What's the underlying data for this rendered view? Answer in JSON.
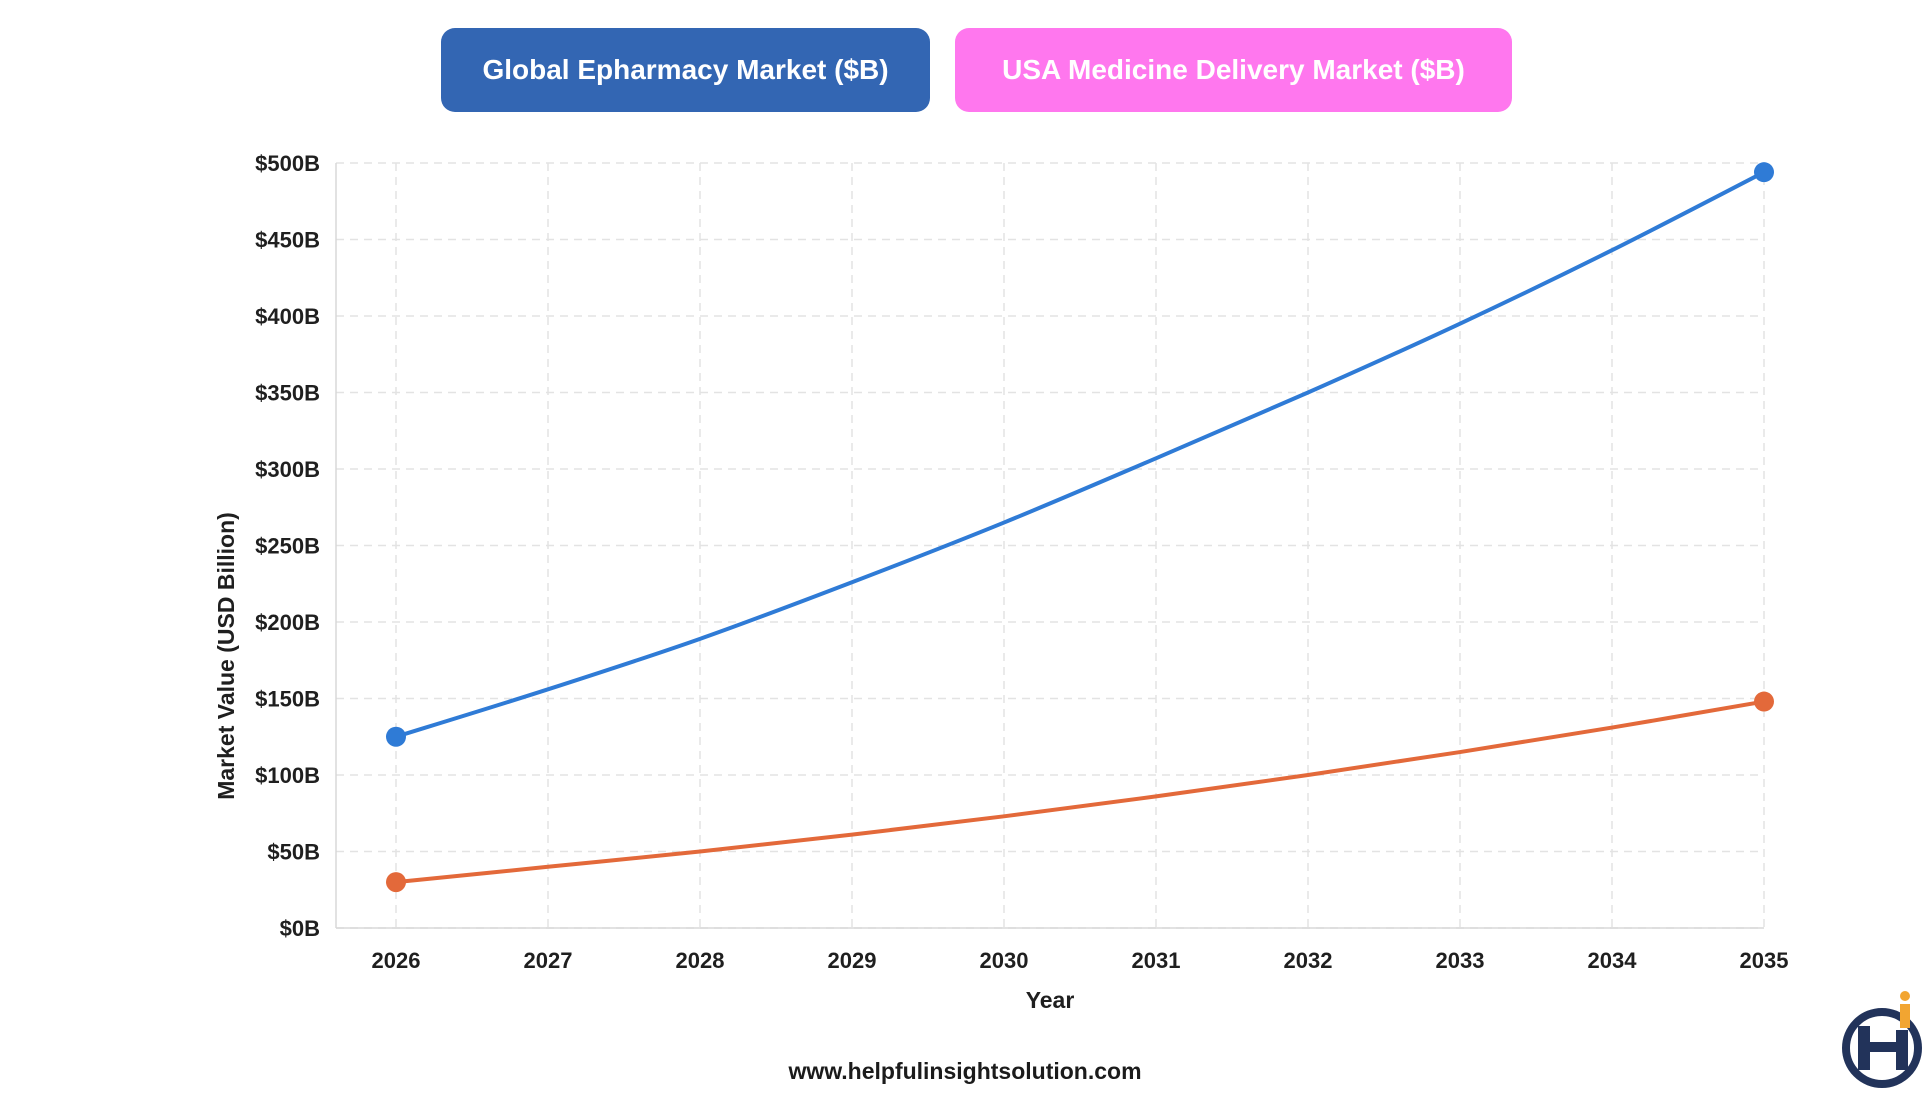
{
  "legend": [
    {
      "label": "Global Epharmacy Market ($B)",
      "color": "#3366b3"
    },
    {
      "label": "USA Medicine Delivery Market ($B)",
      "color": "#ff77ee"
    }
  ],
  "footer": {
    "url": "www.helpfulinsightsolution.com"
  },
  "chart_data": {
    "type": "line",
    "title": "",
    "xlabel": "Year",
    "ylabel": "Market Value (USD Billion)",
    "x": [
      "2026",
      "2027",
      "2028",
      "2029",
      "2030",
      "2031",
      "2032",
      "2033",
      "2034",
      "2035"
    ],
    "ylim": [
      0,
      500
    ],
    "y_ticks": [
      0,
      50,
      100,
      150,
      200,
      250,
      300,
      350,
      400,
      450,
      500
    ],
    "y_tick_labels": [
      "$0B",
      "$50B",
      "$100B",
      "$150B",
      "$200B",
      "$250B",
      "$300B",
      "$350B",
      "$400B",
      "$450B",
      "$500B"
    ],
    "grid": true,
    "legend_position": "top",
    "series": [
      {
        "name": "Global Epharmacy Market ($B)",
        "line_color": "#2f7bd6",
        "values": [
          125,
          156,
          189,
          226,
          265,
          307,
          350,
          395,
          443,
          494
        ]
      },
      {
        "name": "USA Medicine Delivery Market ($B)",
        "line_color": "#e3693a",
        "values": [
          30,
          40,
          50,
          61,
          73,
          86,
          100,
          115,
          131,
          148
        ]
      }
    ]
  }
}
